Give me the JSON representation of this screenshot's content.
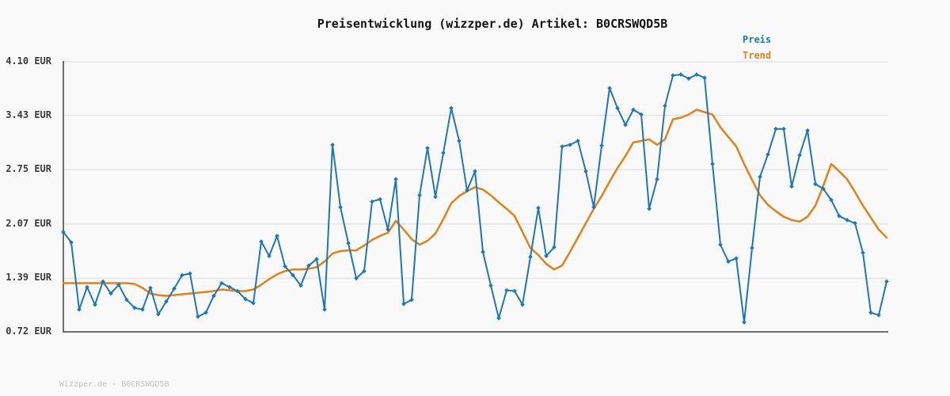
{
  "page": {
    "background": "#f9f9f9",
    "watermark": "Wizzper.de - B0CRSWQD5B"
  },
  "chart_data": {
    "type": "line",
    "title": "Preisentwicklung (wizzper.de) Artikel: B0CRSWQD5B",
    "xlabel": "",
    "ylabel": "",
    "grid": "horizontal",
    "legend_position": "top-right",
    "axis_color": "#6f6f6f",
    "grid_color": "#e6e6e6",
    "ylim": [
      0.72,
      4.1
    ],
    "yticks": [
      {
        "label": "4.10 EUR",
        "value": 4.1
      },
      {
        "label": "3.43 EUR",
        "value": 3.43
      },
      {
        "label": "2.75 EUR",
        "value": 2.75
      },
      {
        "label": "2.07 EUR",
        "value": 2.07
      },
      {
        "label": "1.39 EUR",
        "value": 1.39
      },
      {
        "label": "0.72 EUR",
        "value": 0.72
      }
    ],
    "x_axis": {
      "labels_visible": false,
      "points": 105
    },
    "series": [
      {
        "name": "Preis",
        "color": "#1f77b4",
        "marker": "diamond",
        "values": [
          1.97,
          1.84,
          1.0,
          1.28,
          1.06,
          1.35,
          1.2,
          1.31,
          1.12,
          1.02,
          1.0,
          1.27,
          0.94,
          1.1,
          1.26,
          1.43,
          1.45,
          0.91,
          0.96,
          1.17,
          1.33,
          1.28,
          1.23,
          1.13,
          1.08,
          1.85,
          1.67,
          1.92,
          1.54,
          1.43,
          1.3,
          1.55,
          1.63,
          1.0,
          3.06,
          2.28,
          1.83,
          1.39,
          1.48,
          2.35,
          2.38,
          2.0,
          2.63,
          1.07,
          1.12,
          2.43,
          3.02,
          2.41,
          2.96,
          3.52,
          3.11,
          2.49,
          2.73,
          1.72,
          1.3,
          0.89,
          1.24,
          1.23,
          1.06,
          1.66,
          2.27,
          1.67,
          1.78,
          3.04,
          3.06,
          3.11,
          2.73,
          2.28,
          3.05,
          3.77,
          3.52,
          3.31,
          3.5,
          3.44,
          2.26,
          2.63,
          3.55,
          3.93,
          3.94,
          3.89,
          3.94,
          3.9,
          2.82,
          1.81,
          1.6,
          1.64,
          0.84,
          1.77,
          2.66,
          2.94,
          3.26,
          3.26,
          2.54,
          2.93,
          3.24,
          2.57,
          2.51,
          2.37,
          2.17,
          2.12,
          2.08,
          1.71,
          0.96,
          0.93,
          1.35
        ]
      },
      {
        "name": "Trend",
        "color": "#e0821a",
        "marker": "none",
        "values": [
          1.33,
          1.33,
          1.33,
          1.33,
          1.33,
          1.33,
          1.33,
          1.33,
          1.33,
          1.32,
          1.27,
          1.2,
          1.18,
          1.17,
          1.18,
          1.19,
          1.2,
          1.21,
          1.22,
          1.23,
          1.25,
          1.24,
          1.23,
          1.23,
          1.25,
          1.31,
          1.38,
          1.44,
          1.48,
          1.5,
          1.5,
          1.51,
          1.53,
          1.6,
          1.7,
          1.73,
          1.74,
          1.74,
          1.8,
          1.87,
          1.92,
          1.96,
          2.11,
          2.0,
          1.88,
          1.81,
          1.86,
          1.95,
          2.13,
          2.33,
          2.42,
          2.48,
          2.53,
          2.5,
          2.43,
          2.34,
          2.26,
          2.17,
          1.97,
          1.77,
          1.68,
          1.57,
          1.5,
          1.55,
          1.72,
          1.9,
          2.08,
          2.26,
          2.42,
          2.6,
          2.77,
          2.92,
          3.09,
          3.11,
          3.13,
          3.06,
          3.13,
          3.38,
          3.4,
          3.44,
          3.5,
          3.47,
          3.44,
          3.28,
          3.16,
          3.04,
          2.82,
          2.62,
          2.43,
          2.31,
          2.23,
          2.16,
          2.12,
          2.1,
          2.16,
          2.3,
          2.55,
          2.82,
          2.73,
          2.63,
          2.47,
          2.3,
          2.15,
          2.0,
          1.9
        ]
      }
    ]
  }
}
